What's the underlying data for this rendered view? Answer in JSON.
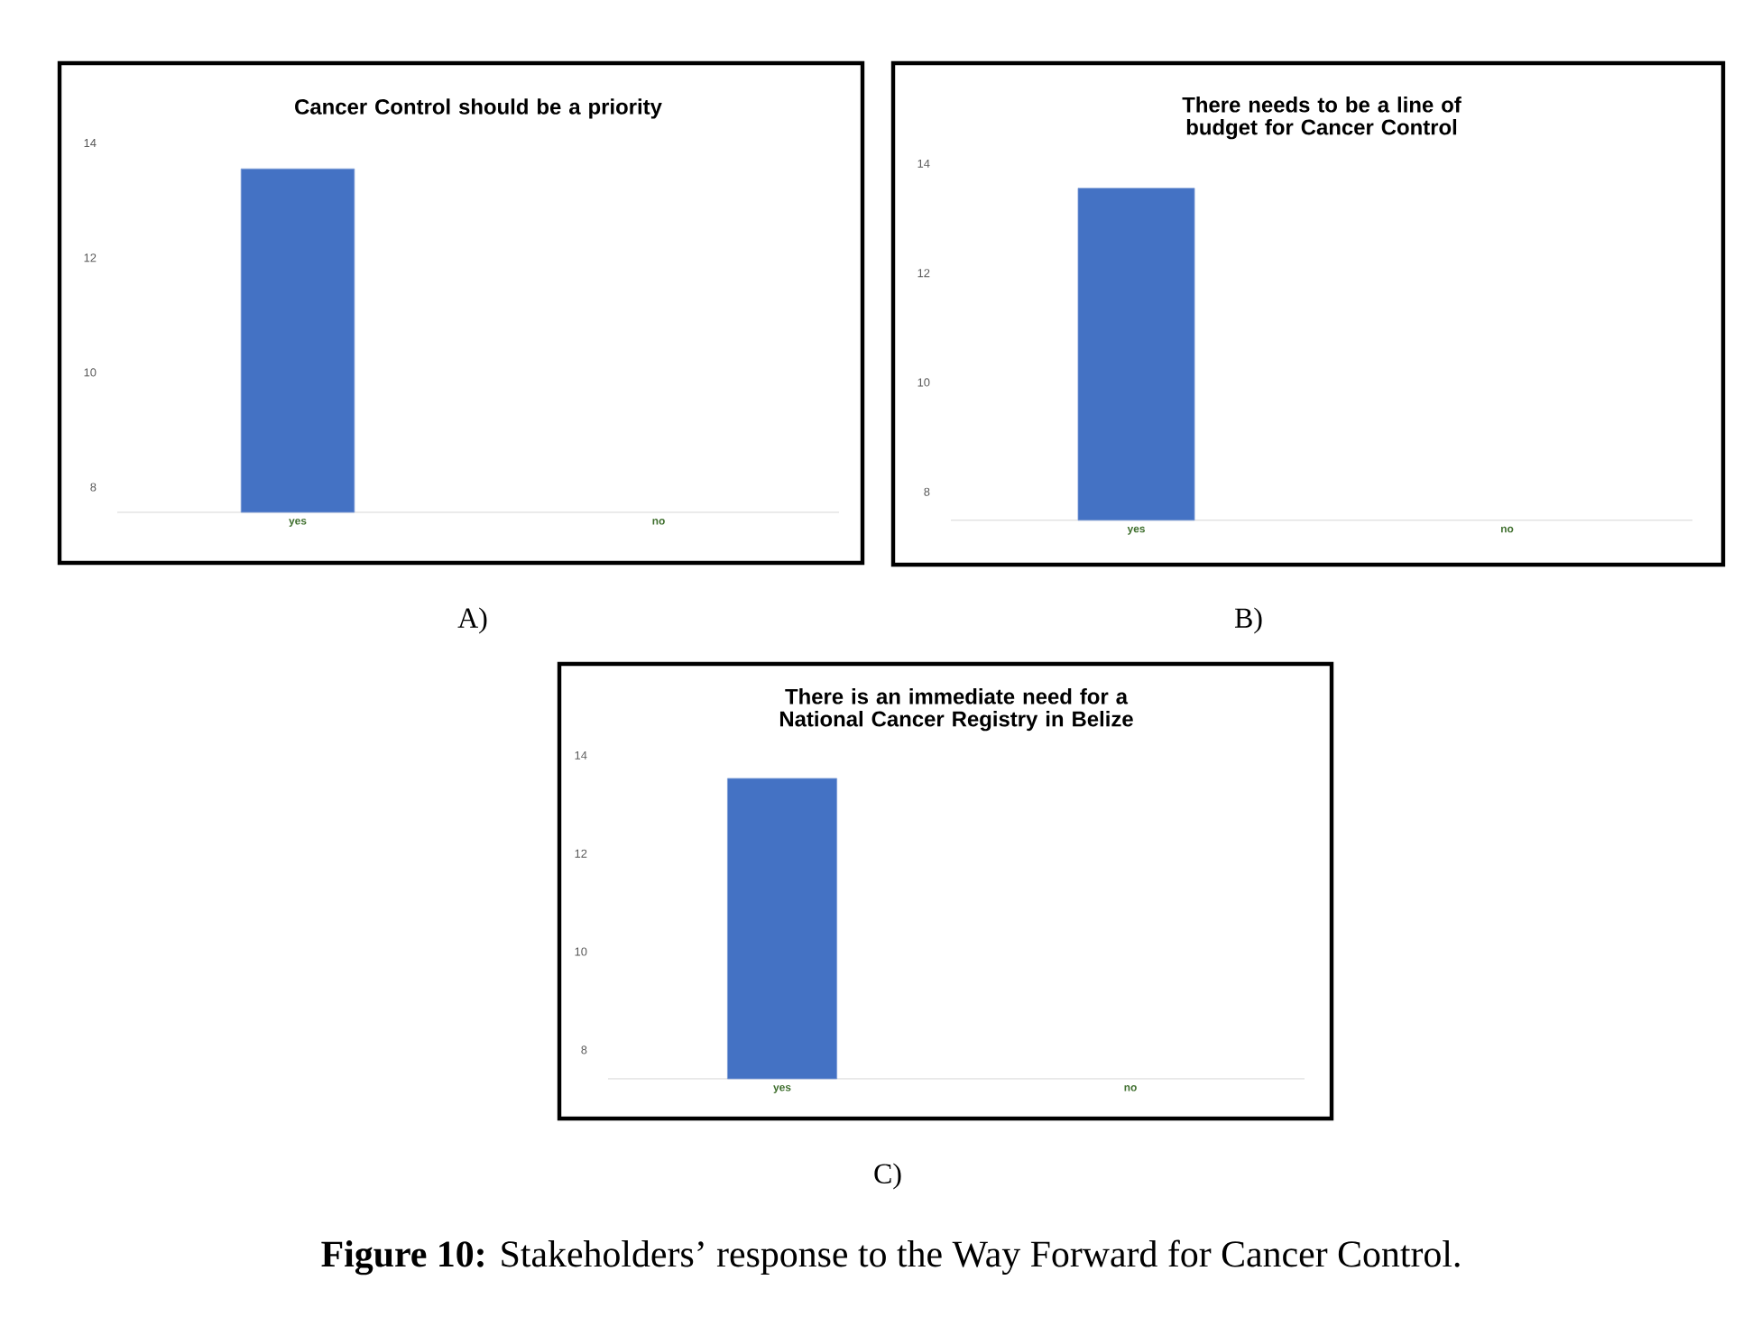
{
  "chart_data": [
    {
      "type": "bar",
      "title": "Cancer Control should be a priority",
      "categories": [
        "yes",
        "no"
      ],
      "values": [
        13.55,
        null
      ],
      "color": "#4472c4",
      "ylim": [
        7.56,
        14
      ],
      "yticks": [
        8,
        10,
        12,
        14
      ],
      "grid": false,
      "annotations": [
        "A)"
      ]
    },
    {
      "type": "bar",
      "title": "There needs to be a line of budget for Cancer Control",
      "categories": [
        "yes",
        "no"
      ],
      "values": [
        13.55,
        null
      ],
      "color": "#4472c4",
      "ylim": [
        7.48,
        14
      ],
      "yticks": [
        8,
        10,
        12,
        14
      ],
      "grid": false,
      "annotations": [
        "B)"
      ]
    },
    {
      "type": "bar",
      "title": "There is an immediate need for a National Cancer Registry in Belize",
      "categories": [
        "yes",
        "no"
      ],
      "values": [
        13.53,
        null
      ],
      "color": "#4472c4",
      "ylim": [
        7.41,
        14
      ],
      "yticks": [
        8,
        10,
        12,
        14
      ],
      "grid": false,
      "annotations": [
        "C)",
        "**Figure 10:** Stakeholders’ response to the Way Forward for Cancer Control."
      ]
    }
  ]
}
